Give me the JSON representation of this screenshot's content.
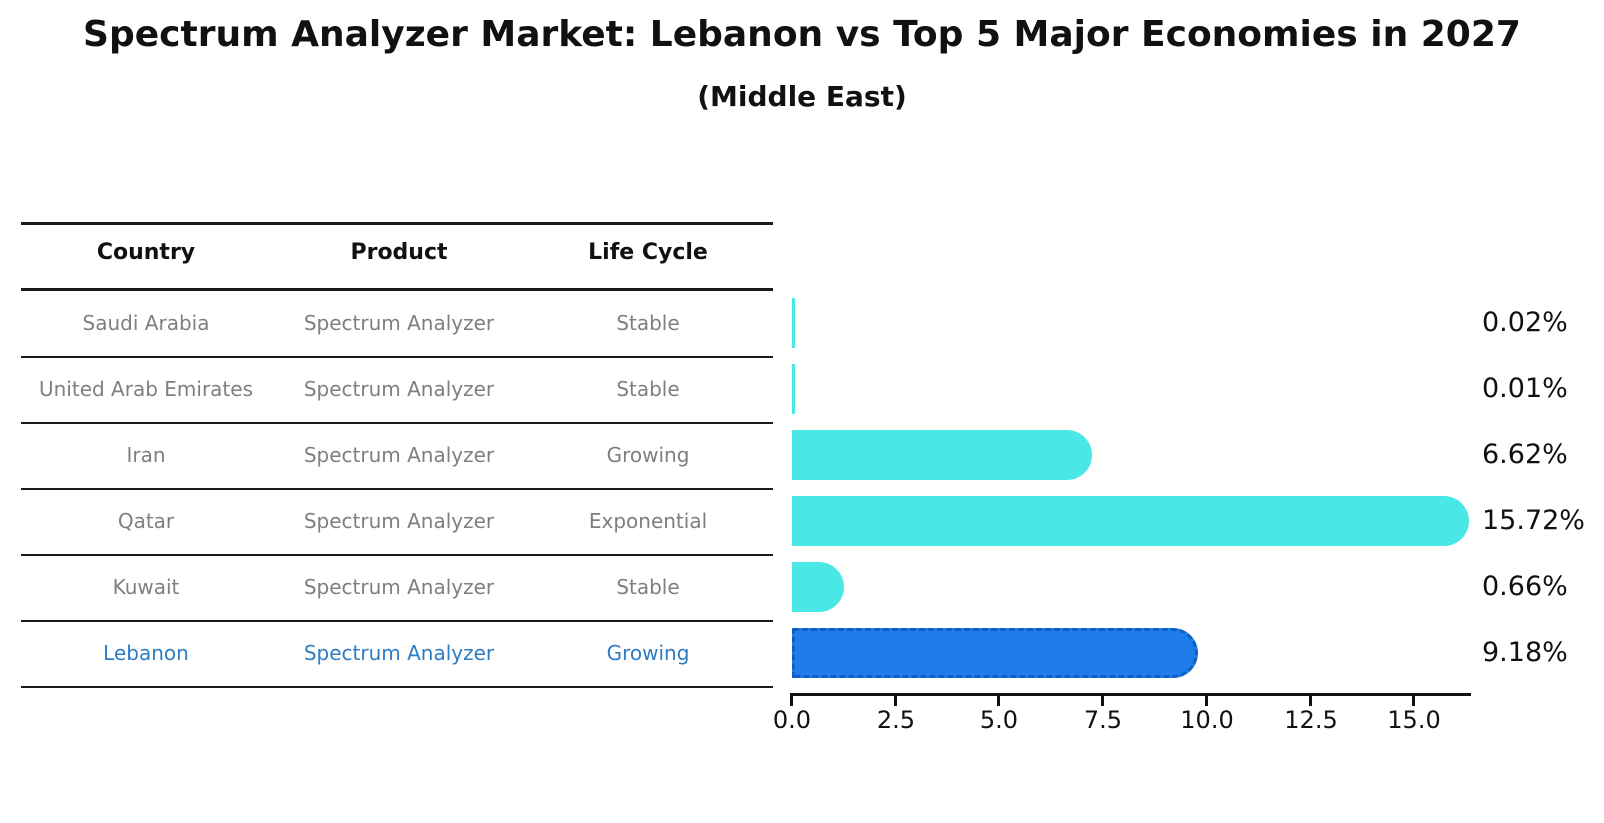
{
  "header": {
    "title": "Spectrum Analyzer Market: Lebanon vs Top 5 Major Economies in 2027",
    "subtitle": "(Middle East)"
  },
  "table": {
    "columns": [
      "Country",
      "Product",
      "Life Cycle"
    ],
    "rows": [
      {
        "country": "Saudi Arabia",
        "product": "Spectrum Analyzer",
        "life_cycle": "Stable"
      },
      {
        "country": "United Arab Emirates",
        "product": "Spectrum Analyzer",
        "life_cycle": "Stable"
      },
      {
        "country": "Iran",
        "product": "Spectrum Analyzer",
        "life_cycle": "Growing"
      },
      {
        "country": "Qatar",
        "product": "Spectrum Analyzer",
        "life_cycle": "Exponential"
      },
      {
        "country": "Kuwait",
        "product": "Spectrum Analyzer",
        "life_cycle": "Stable"
      },
      {
        "country": "Lebanon",
        "product": "Spectrum Analyzer",
        "life_cycle": "Growing"
      }
    ]
  },
  "chart_data": {
    "type": "bar",
    "orientation": "horizontal",
    "title": "Spectrum Analyzer Market: Lebanon vs Top 5 Major Economies in 2027 (Middle East)",
    "categories": [
      "Saudi Arabia",
      "United Arab Emirates",
      "Iran",
      "Qatar",
      "Kuwait",
      "Lebanon"
    ],
    "values": [
      0.02,
      0.01,
      6.62,
      15.72,
      0.66,
      9.18
    ],
    "value_labels": [
      "0.02%",
      "0.01%",
      "6.62%",
      "15.72%",
      "0.66%",
      "9.18%"
    ],
    "unit": "percent",
    "x_ticks": [
      0.0,
      2.5,
      5.0,
      7.5,
      10.0,
      12.5,
      15.0
    ],
    "x_tick_labels": [
      "0.0",
      "2.5",
      "5.0",
      "7.5",
      "10.0",
      "12.5",
      "15.0"
    ],
    "xlim": [
      0,
      16.4
    ],
    "grid": false,
    "legend": false,
    "bar_color": "#49e8e6",
    "highlight_index": 5,
    "highlight_color": "#1e7de8",
    "highlight_border_color": "#0f5fc8",
    "highlight_border_style": "dashed"
  },
  "colors": {
    "background": "#ffffff",
    "table_text": "#7f7f7f",
    "header_text": "#111111",
    "highlight_text": "#2e7cc3",
    "rule": "#1a1a1a"
  }
}
